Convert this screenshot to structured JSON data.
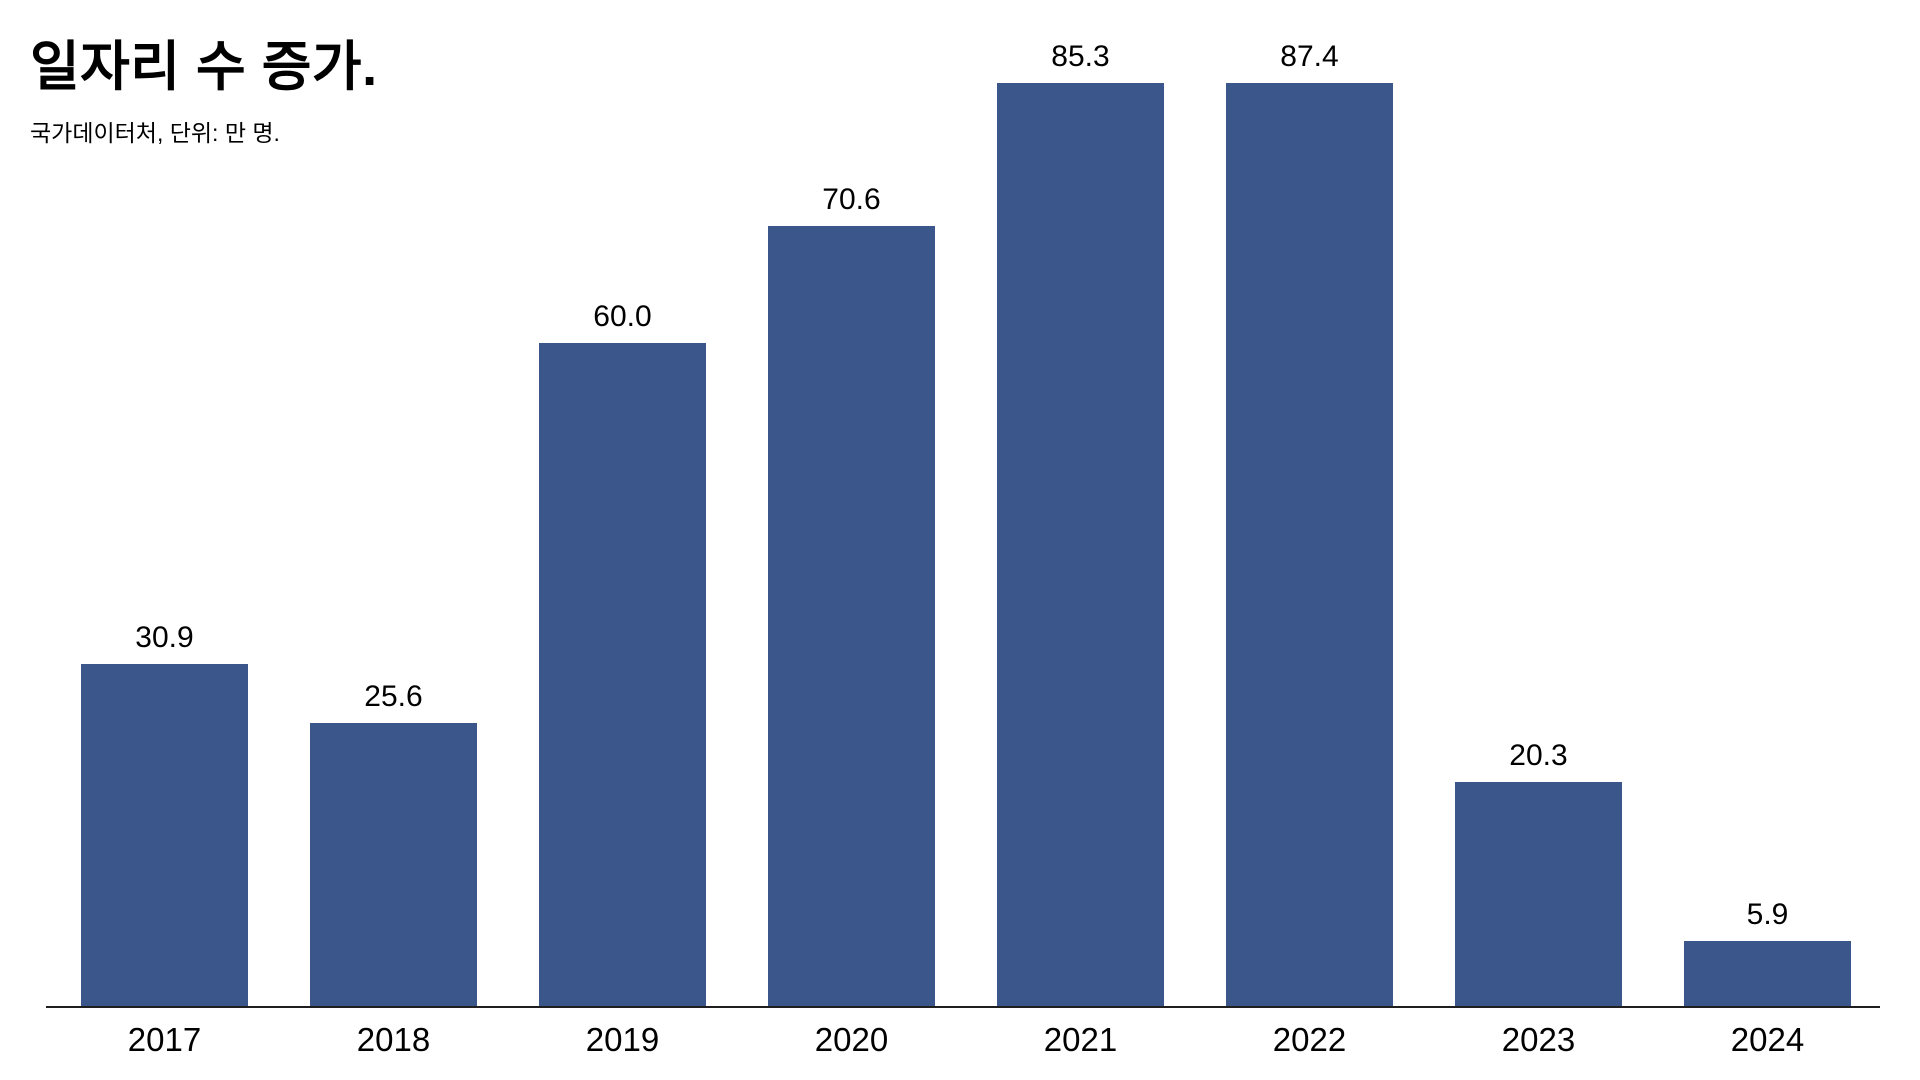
{
  "chart": {
    "title": "일자리 수 증가.",
    "subtitle": "국가데이터처, 단위: 만 명."
  },
  "chart_data": {
    "type": "bar",
    "title": "일자리 수 증가.",
    "subtitle": "국가데이터처, 단위: 만 명.",
    "categories": [
      "2017",
      "2018",
      "2019",
      "2020",
      "2021",
      "2022",
      "2023",
      "2024"
    ],
    "values": [
      30.9,
      25.6,
      60.0,
      70.6,
      85.3,
      87.4,
      20.3,
      5.9
    ],
    "value_labels": [
      "30.9",
      "25.6",
      "60.0",
      "70.6",
      "85.3",
      "87.4",
      "20.3",
      "5.9"
    ],
    "bar_color": "#3A568A",
    "axis_color": "#1f1f1f",
    "xlabel": "",
    "ylabel": "",
    "ylim": [
      0,
      87.4
    ],
    "grid": false,
    "legend": "none",
    "y_axis_visible": false
  }
}
